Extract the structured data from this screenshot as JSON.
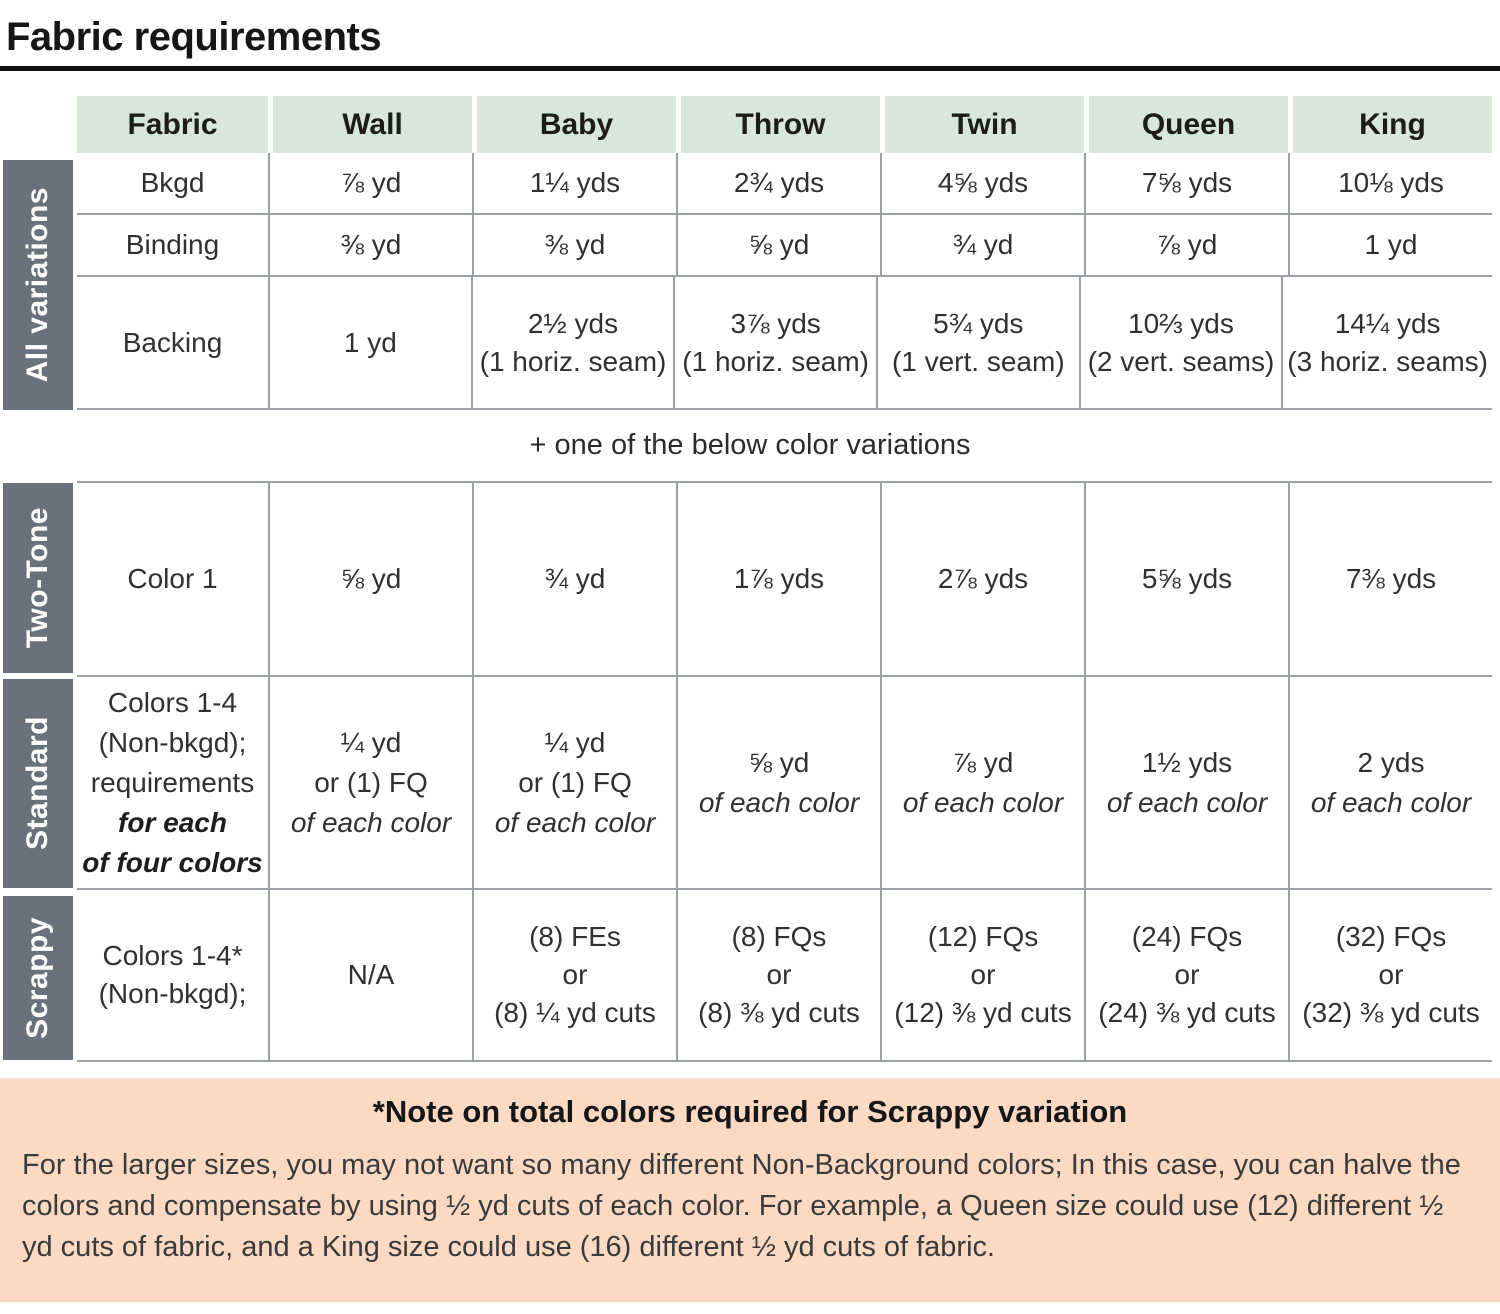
{
  "title": "Fabric requirements",
  "divider_text": "+ one of the below color variations",
  "colors": {
    "header_green": "#d8e7db",
    "side_label_gray": "#69717d",
    "grid_line_gray": "#9aa0a5",
    "note_peach": "#fbd9c2"
  },
  "table": {
    "columns": [
      "Fabric",
      "Wall",
      "Baby",
      "Throw",
      "Twin",
      "Queen",
      "King"
    ],
    "sections": [
      {
        "id": "all-variations",
        "side_label": "All variations",
        "rows": [
          {
            "label": [
              "Bkgd"
            ],
            "cells": [
              [
                "⅞ yd"
              ],
              [
                "1¼ yds"
              ],
              [
                "2¾ yds"
              ],
              [
                "4⅝ yds"
              ],
              [
                "7⅝ yds"
              ],
              [
                "10⅛ yds"
              ]
            ]
          },
          {
            "label": [
              "Binding"
            ],
            "cells": [
              [
                "⅜ yd"
              ],
              [
                "⅜ yd"
              ],
              [
                "⅝ yd"
              ],
              [
                "¾ yd"
              ],
              [
                "⅞ yd"
              ],
              [
                "1 yd"
              ]
            ]
          },
          {
            "label": [
              "Backing"
            ],
            "cells": [
              [
                "1 yd"
              ],
              [
                "2½ yds",
                "(1 horiz. seam)"
              ],
              [
                "3⅞ yds",
                "(1 horiz. seam)"
              ],
              [
                "5¾ yds",
                "(1 vert. seam)"
              ],
              [
                "10⅔ yds",
                "(2 vert. seams)"
              ],
              [
                "14¼ yds",
                "(3 horiz. seams)"
              ]
            ]
          }
        ]
      },
      {
        "id": "two-tone",
        "side_label": "Two-Tone",
        "rows": [
          {
            "label": [
              "Color 1"
            ],
            "cells": [
              [
                "⅝ yd"
              ],
              [
                "¾ yd"
              ],
              [
                "1⅞ yds"
              ],
              [
                "2⅞ yds"
              ],
              [
                "5⅝ yds"
              ],
              [
                "7⅜ yds"
              ]
            ]
          }
        ]
      },
      {
        "id": "standard",
        "side_label": "Standard",
        "rows": [
          {
            "label": [
              "Colors 1-4",
              "(Non-bkgd);",
              "requirements",
              {
                "text": "for each",
                "style": "bold-italic"
              },
              {
                "text": "of four colors",
                "style": "bold-italic"
              }
            ],
            "cells": [
              [
                "¼ yd",
                "or (1) FQ",
                {
                  "text": "of each color",
                  "style": "italic"
                }
              ],
              [
                "¼ yd",
                "or (1) FQ",
                {
                  "text": "of each color",
                  "style": "italic"
                }
              ],
              [
                "⅝ yd",
                {
                  "text": "of each color",
                  "style": "italic"
                }
              ],
              [
                "⅞ yd",
                {
                  "text": "of each color",
                  "style": "italic"
                }
              ],
              [
                "1½ yds",
                {
                  "text": "of each color",
                  "style": "italic"
                }
              ],
              [
                "2 yds",
                {
                  "text": "of each color",
                  "style": "italic"
                }
              ]
            ]
          }
        ]
      },
      {
        "id": "scrappy",
        "side_label": "Scrappy",
        "rows": [
          {
            "label": [
              "Colors 1-4*",
              "(Non-bkgd);"
            ],
            "cells": [
              [
                "N/A"
              ],
              [
                "(8) FEs",
                "or",
                "(8) ¼ yd cuts"
              ],
              [
                "(8) FQs",
                "or",
                "(8) ⅜ yd cuts"
              ],
              [
                "(12) FQs",
                "or",
                "(12) ⅜ yd cuts"
              ],
              [
                "(24) FQs",
                "or",
                "(24) ⅜ yd cuts"
              ],
              [
                "(32) FQs",
                "or",
                "(32) ⅜ yd cuts"
              ]
            ]
          }
        ]
      }
    ]
  },
  "note": {
    "title": "*Note on total colors required for Scrappy variation",
    "body": "For the larger sizes, you may not want so many different Non-Background colors; In this case, you can halve the colors and compensate by using ½ yd cuts of each color. For example, a Queen size could use (12) different ½ yd cuts of fabric, and a King size could use (16) different ½ yd cuts of fabric."
  }
}
